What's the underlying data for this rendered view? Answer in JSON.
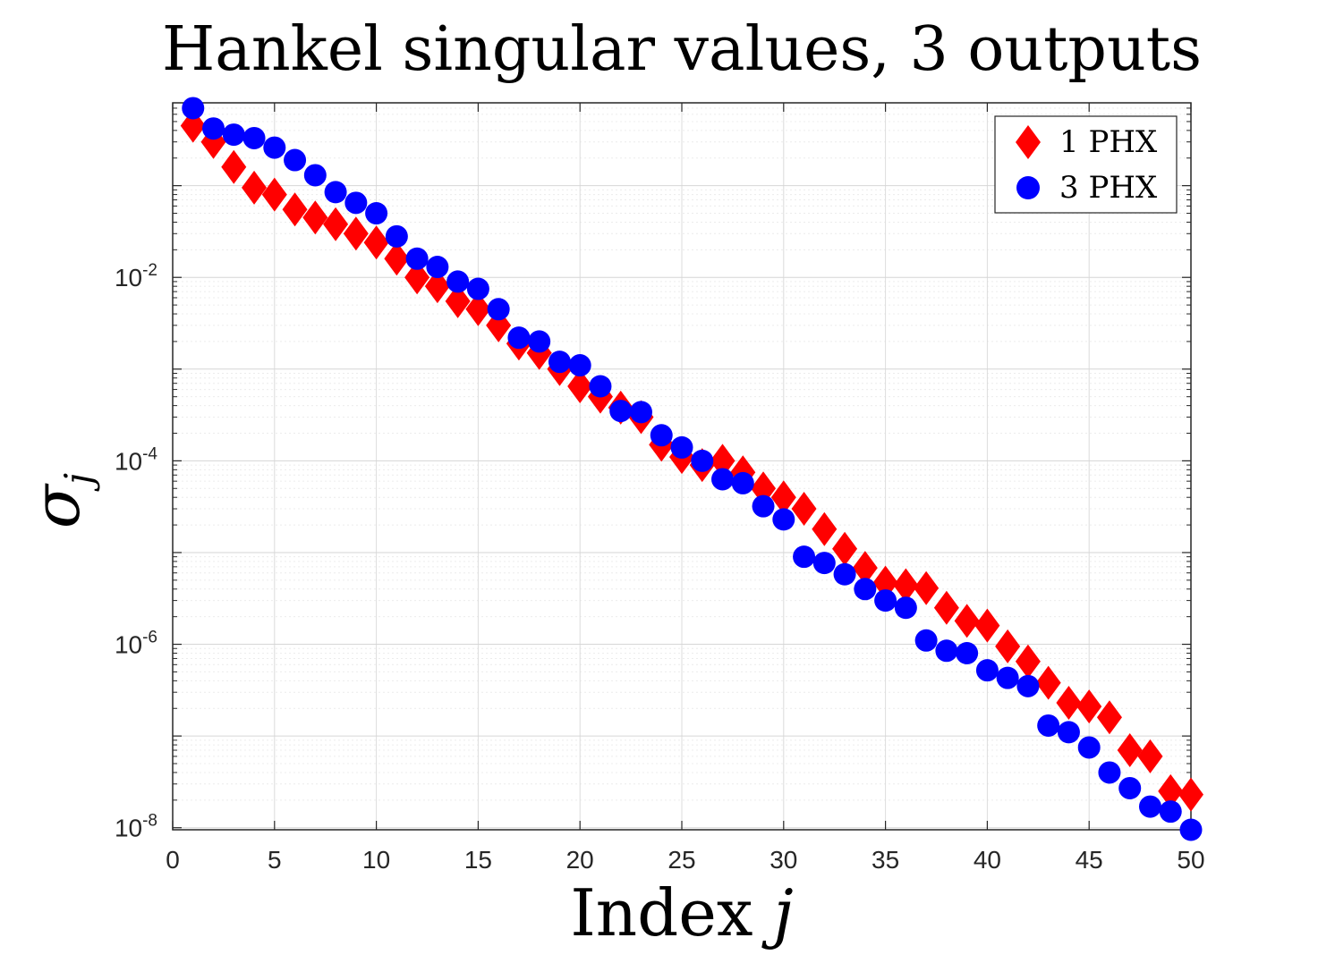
{
  "chart_data": {
    "type": "scatter",
    "title": "Hankel singular values, 3 outputs",
    "xlabel": "Index j",
    "xlabel_main": "Index ",
    "xlabel_var": "j",
    "ylabel": "σ_j",
    "ylabel_symbol": "σ",
    "ylabel_sub": "j",
    "yscale": "log",
    "xlim": [
      0,
      50
    ],
    "ylim": [
      9.5e-09,
      0.8
    ],
    "grid": true,
    "legend_position": "top-right",
    "x_ticks": [
      "0",
      "5",
      "10",
      "15",
      "20",
      "25",
      "30",
      "35",
      "40",
      "45",
      "50"
    ],
    "y_ticks": [
      {
        "base": "10",
        "exp": "-2"
      },
      {
        "base": "10",
        "exp": "-4"
      },
      {
        "base": "10",
        "exp": "-6"
      },
      {
        "base": "10",
        "exp": "-8"
      }
    ],
    "x": [
      1,
      2,
      3,
      4,
      5,
      6,
      7,
      8,
      9,
      10,
      11,
      12,
      13,
      14,
      15,
      16,
      17,
      18,
      19,
      20,
      21,
      22,
      23,
      24,
      25,
      26,
      27,
      28,
      29,
      30,
      31,
      32,
      33,
      34,
      35,
      36,
      37,
      38,
      39,
      40,
      41,
      42,
      43,
      44,
      45,
      46,
      47,
      48,
      49,
      50
    ],
    "series": [
      {
        "name": "1 PHX",
        "marker": "diamond",
        "color": "#ff0000",
        "values": [
          0.45,
          0.3,
          0.16,
          0.095,
          0.08,
          0.055,
          0.045,
          0.038,
          0.03,
          0.024,
          0.016,
          0.01,
          0.008,
          0.0055,
          0.0045,
          0.003,
          0.0019,
          0.0015,
          0.001,
          0.00065,
          0.0005,
          0.00038,
          0.0003,
          0.00015,
          0.00011,
          9e-05,
          0.0001,
          7.5e-05,
          5e-05,
          4e-05,
          3e-05,
          1.8e-05,
          1.1e-05,
          6.8e-06,
          4.7e-06,
          4.4e-06,
          4.1e-06,
          2.5e-06,
          1.8e-06,
          1.6e-06,
          9.5e-07,
          6.5e-07,
          3.8e-07,
          2.3e-07,
          2.1e-07,
          1.6e-07,
          7e-08,
          6e-08,
          2.5e-08,
          2.3e-08
        ]
      },
      {
        "name": "3 PHX",
        "marker": "circle",
        "color": "#0000ff",
        "values": [
          0.7,
          0.42,
          0.36,
          0.33,
          0.26,
          0.19,
          0.13,
          0.085,
          0.065,
          0.05,
          0.028,
          0.016,
          0.013,
          0.009,
          0.0075,
          0.0045,
          0.0022,
          0.002,
          0.0012,
          0.0011,
          0.00065,
          0.00035,
          0.00034,
          0.00019,
          0.00014,
          0.0001,
          6.3e-05,
          5.7e-05,
          3.2e-05,
          2.3e-05,
          9e-06,
          7.7e-06,
          5.8e-06,
          4e-06,
          3e-06,
          2.5e-06,
          1.1e-06,
          8.5e-07,
          8e-07,
          5.2e-07,
          4.3e-07,
          3.5e-07,
          1.3e-07,
          1.1e-07,
          7.5e-08,
          4e-08,
          2.7e-08,
          1.7e-08,
          1.5e-08,
          9.5e-09
        ]
      }
    ]
  }
}
